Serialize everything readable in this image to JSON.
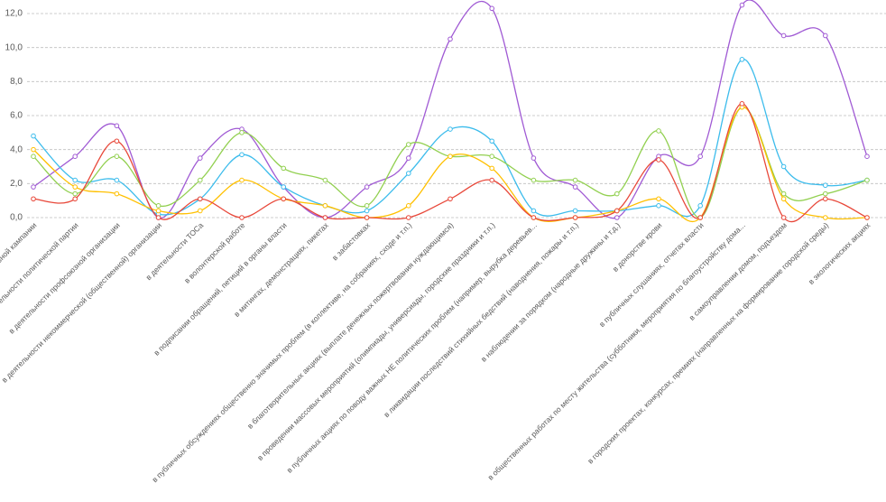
{
  "chart_data": {
    "type": "line",
    "categories": [
      "в проведении избирательной кампании",
      "в деятельности политической партии",
      "в деятельности профсоюзной организации",
      "в деятельности некоммерческой (общественной) организации",
      "в деятельности ТОСа",
      "в волонтерской работе",
      "в подписании обращений, петиций в органы власти",
      "в митингах, демонстрациях, пикетах",
      "в забастовках",
      "в публичных обсуждениях общественно значимых проблем (в коллективе, на собраниях, сходе и т.п.)",
      "в благотворительных акциях (выплате денежных пожертвования нуждающимся)",
      "в проведении массовых мероприятий (олимпиады, универсиады, городские праздники и т.п.)",
      "в публичных акциях по поводу важных НЕ политических проблем (например, вырубка деревьев...",
      "в ликвидации последствий стихийных бедствий (наводнения, пожары и т.п.)",
      "в  наблюдении за порядком (народные дружины и т.д.)",
      "в донорстве крови",
      "в публичных слушаниях, отчетах власти",
      "в общественных работах по месту жительства (субботники, мероприятия по благоустройству дома...",
      "в самоуправлении домом, подъездом",
      "в городских проектах, конкурсах, премиях (направленных на формирование городской среды)",
      "в экологических акциях"
    ],
    "series": [
      {
        "color": "#a05ad4",
        "values": [
          1.8,
          3.6,
          5.4,
          0,
          3.5,
          5.2,
          1.8,
          0,
          1.8,
          3.5,
          10.5,
          12.3,
          3.5,
          1.8,
          0,
          3.6,
          3.6,
          12.5,
          10.7,
          10.7,
          3.6
        ]
      },
      {
        "color": "#3cbcec",
        "values": [
          4.8,
          2.2,
          2.2,
          0.2,
          1.1,
          3.7,
          1.8,
          0.7,
          0.4,
          2.6,
          5.2,
          4.5,
          0.4,
          0.4,
          0.4,
          0.7,
          0.7,
          9.3,
          3.0,
          1.9,
          2.2
        ]
      },
      {
        "color": "#92d050",
        "values": [
          3.6,
          1.4,
          3.6,
          0.7,
          2.2,
          5.0,
          2.9,
          2.2,
          0.7,
          4.3,
          3.6,
          3.6,
          2.2,
          2.2,
          1.4,
          5.1,
          0,
          6.5,
          1.4,
          1.4,
          2.2
        ]
      },
      {
        "color": "#ffc000",
        "values": [
          4.0,
          1.8,
          1.4,
          0.4,
          0.4,
          2.2,
          1.1,
          0.7,
          0,
          0.7,
          3.6,
          2.9,
          0,
          0,
          0.4,
          1.1,
          0,
          6.5,
          1.1,
          0,
          0
        ]
      },
      {
        "color": "#e8483a",
        "values": [
          1.1,
          1.1,
          4.5,
          0,
          1.1,
          0,
          1.1,
          0,
          0,
          0,
          1.1,
          2.2,
          0,
          0,
          0.4,
          3.4,
          0,
          6.7,
          0,
          1.1,
          0
        ]
      }
    ],
    "ylim": [
      0,
      12.8
    ],
    "yticks": [
      {
        "value": 0,
        "label": "0,0"
      },
      {
        "value": 2,
        "label": "2,0"
      },
      {
        "value": 4,
        "label": "4,0"
      },
      {
        "value": 6,
        "label": "6,0"
      },
      {
        "value": 8,
        "label": "8,0"
      },
      {
        "value": 10,
        "label": "10,0"
      },
      {
        "value": 12,
        "label": "12,0"
      }
    ],
    "grid": true
  }
}
